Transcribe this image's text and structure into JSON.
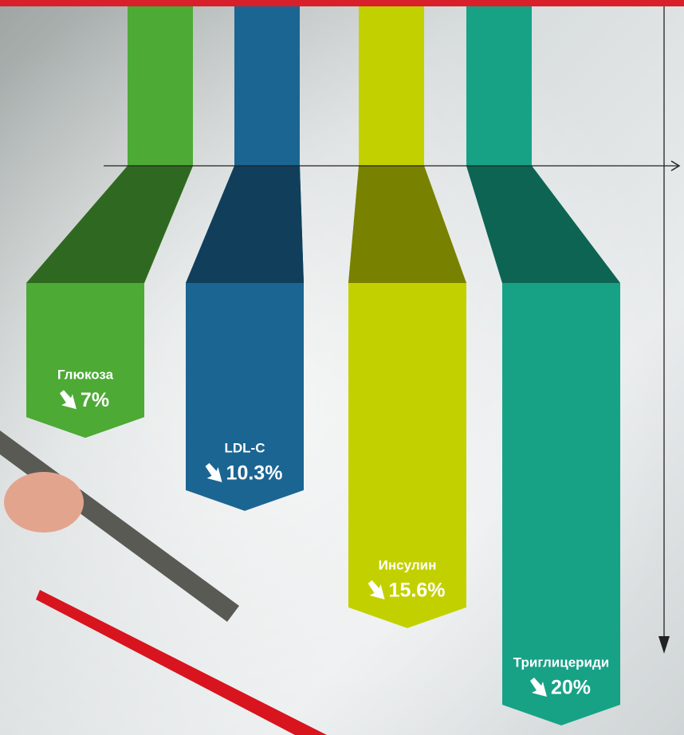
{
  "chart_data": {
    "type": "bar",
    "categories": [
      "Глюкоза",
      "LDL-C",
      "Инсулин",
      "Триглицериди"
    ],
    "values": [
      7,
      10.3,
      15.6,
      20
    ],
    "value_labels": [
      "7%",
      "10.3%",
      "15.6%",
      "20%"
    ],
    "colors": [
      "#4caa35",
      "#1b6593",
      "#c3d000",
      "#17a286"
    ]
  }
}
